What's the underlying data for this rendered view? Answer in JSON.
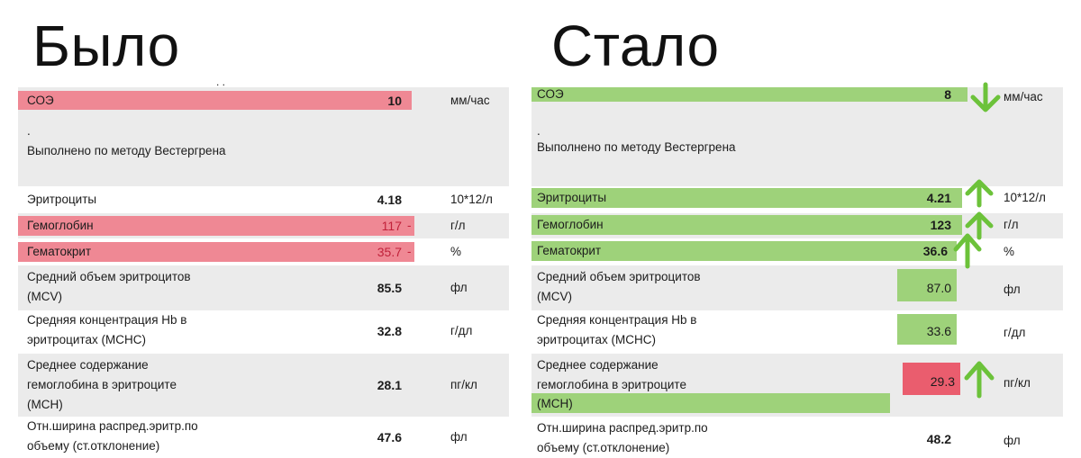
{
  "titles": {
    "before": "Было",
    "after": "Стало"
  },
  "method_dot": ".",
  "method_note": "Выполнено по методу Вестергрена",
  "names": {
    "soe": "СОЭ",
    "rbc": "Эритроциты",
    "hgb": "Гемоглобин",
    "hct": "Гематокрит",
    "mcv_1": "Средний объем эритроцитов",
    "mcv_2": "(MCV)",
    "mchc_1": "Средняя концентрация Hb в",
    "mchc_2": "эритроцитах (MCHC)",
    "mch_1": "Среднее содержание",
    "mch_2": "гемоглобина в эритроците",
    "mch_3": "(MCH)",
    "rdw_1": "Отн.ширина распред.эритр.по",
    "rdw_2": "объему (ст.отклонение)"
  },
  "units": {
    "soe": "мм/час",
    "rbc": "10*12/л",
    "hgb": "г/л",
    "hct": "%",
    "mcv": "фл",
    "mchc": "г/дл",
    "mch": "пг/кл",
    "rdw": "фл"
  },
  "before": {
    "soe": "10",
    "rbc": "4.18",
    "hgb": "117",
    "hct": "35.7",
    "mcv": "85.5",
    "mchc": "32.8",
    "mch": "28.1",
    "rdw": "47.6",
    "flag_hgb": "-",
    "flag_hct": "-"
  },
  "after": {
    "soe": "8",
    "rbc": "4.21",
    "hgb": "123",
    "hct": "36.6",
    "mcv": "87.0",
    "mchc": "33.6",
    "mch": "29.3",
    "rdw": "48.2"
  },
  "colors": {
    "red_highlight": "#ef8894",
    "green_highlight": "#9ed27a",
    "arrow_green": "#6cc23a"
  },
  "icons": {
    "down": "arrow-down-icon",
    "up": "arrow-up-icon"
  }
}
